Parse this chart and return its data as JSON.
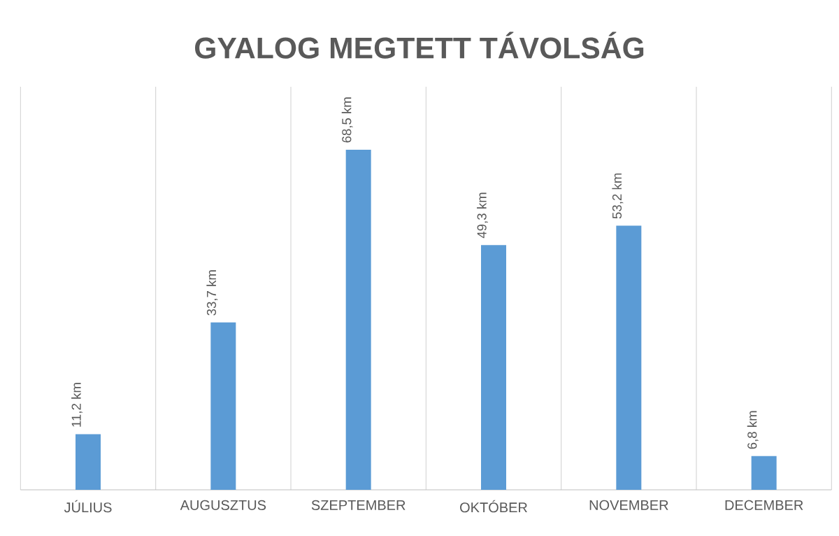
{
  "chart_data": {
    "type": "bar",
    "title": "GYALOG MEGTETT TÁVOLSÁG",
    "categories": [
      "JÚLIUS",
      "AUGUSZTUS",
      "SZEPTEMBER",
      "OKTÓBER",
      "NOVEMBER",
      "DECEMBER"
    ],
    "values": [
      11.2,
      33.7,
      68.5,
      49.3,
      53.2,
      6.8
    ],
    "value_labels": [
      "11,2 km",
      "33,7 km",
      "68,5 km",
      "49,3 km",
      "53,2 km",
      "6,8 km"
    ],
    "color": "#5b9bd5",
    "grid": "x"
  }
}
